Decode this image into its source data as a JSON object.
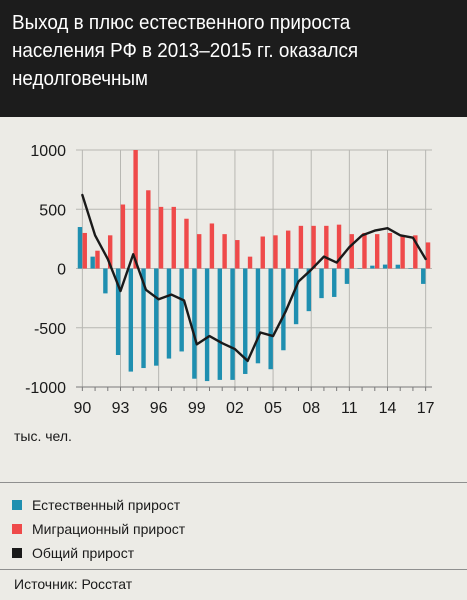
{
  "header": {
    "title_lines": [
      "Выход в плюс естественного прироста",
      "населения РФ в 2013–2015 гг. оказался",
      "недолговечным"
    ]
  },
  "unit_label": "тыс. чел.",
  "legend": {
    "items": [
      {
        "label": "Естественный прирост",
        "color": "#1f8fb0"
      },
      {
        "label": "Миграционный прирост",
        "color": "#ef4a4a"
      },
      {
        "label": "Общий прирост",
        "color": "#1a1a1a"
      }
    ]
  },
  "source": "Источник: Росстат",
  "chart_data": {
    "type": "bar",
    "x": [
      1990,
      1991,
      1992,
      1993,
      1994,
      1995,
      1996,
      1997,
      1998,
      1999,
      2000,
      2001,
      2002,
      2003,
      2004,
      2005,
      2006,
      2007,
      2008,
      2009,
      2010,
      2011,
      2012,
      2013,
      2014,
      2015,
      2016,
      2017
    ],
    "ylim": [
      -1000,
      1000
    ],
    "yticks": [
      -1000,
      -500,
      0,
      500,
      1000
    ],
    "xtick_labels": [
      "90",
      "93",
      "96",
      "99",
      "02",
      "05",
      "08",
      "11",
      "14",
      "17"
    ],
    "xtick_years": [
      1990,
      1993,
      1996,
      1999,
      2002,
      2005,
      2008,
      2011,
      2014,
      2017
    ],
    "grid": true,
    "series": [
      {
        "name": "Естественный прирост",
        "type": "bar",
        "color": "#1f8fb0",
        "values": [
          350,
          100,
          -210,
          -730,
          -870,
          -840,
          -820,
          -760,
          -700,
          -930,
          -950,
          -940,
          -940,
          -890,
          -800,
          -850,
          -690,
          -470,
          -360,
          -250,
          -240,
          -130,
          -4,
          24,
          33,
          32,
          -2,
          -130
        ]
      },
      {
        "name": "Миграционный прирост",
        "type": "bar",
        "color": "#ef4a4a",
        "values": [
          300,
          150,
          280,
          540,
          1000,
          660,
          520,
          520,
          420,
          290,
          380,
          290,
          240,
          100,
          270,
          280,
          320,
          360,
          360,
          360,
          370,
          290,
          300,
          290,
          300,
          270,
          280,
          220
        ]
      },
      {
        "name": "Общий прирост",
        "type": "line",
        "color": "#1a1a1a",
        "values": [
          620,
          280,
          80,
          -190,
          120,
          -180,
          -260,
          -220,
          -270,
          -640,
          -570,
          -630,
          -680,
          -780,
          -540,
          -570,
          -360,
          -110,
          -10,
          100,
          50,
          180,
          280,
          320,
          340,
          280,
          260,
          80
        ]
      }
    ]
  }
}
